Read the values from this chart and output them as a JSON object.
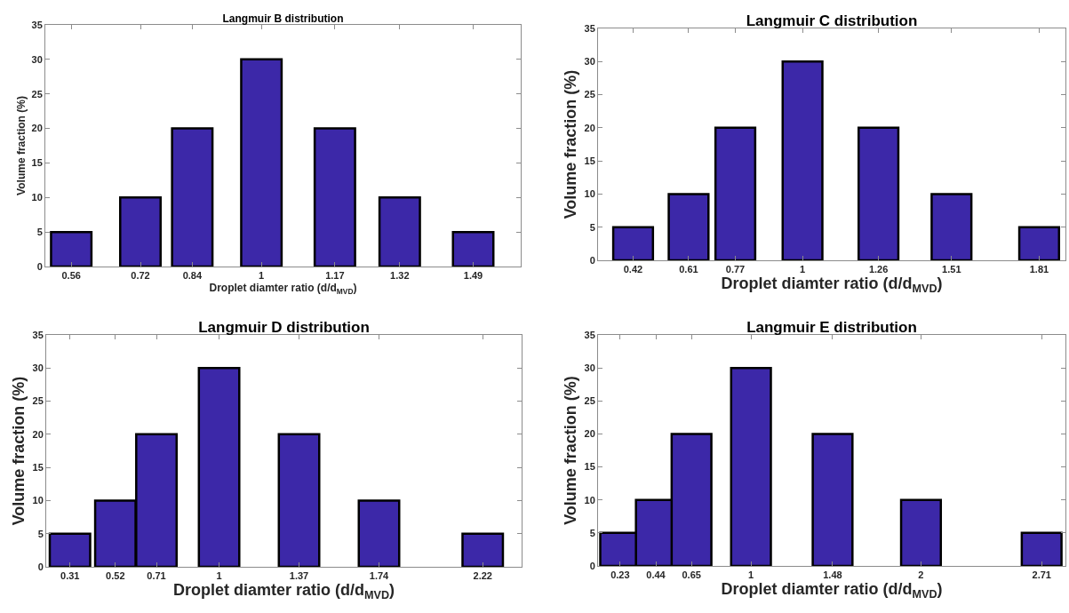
{
  "chart_data": [
    {
      "type": "bar",
      "title": "Langmuir B distribution",
      "xlabel": "Droplet diamter ratio (d/d$_{MVD}$)",
      "ylabel": "Volume fraction (%)",
      "x": [
        0.56,
        0.72,
        0.84,
        1,
        1.17,
        1.32,
        1.49
      ],
      "values": [
        5,
        10,
        20,
        30,
        20,
        10,
        5
      ],
      "color": "#3c28a8",
      "xlim": [
        0.5,
        1.6
      ],
      "xticks": [
        0.56,
        0.72,
        0.84,
        1,
        1.17,
        1.32,
        1.49
      ],
      "ylim": [
        0,
        35
      ],
      "yticks": [
        0,
        5,
        10,
        15,
        20,
        25,
        30,
        35
      ],
      "grid": false,
      "legend": false
    },
    {
      "type": "bar",
      "title": "Langmuir C distribution",
      "xlabel": "Droplet diamter ratio (d/d$_{MVD}$)",
      "ylabel": "Volume fraction (%)",
      "x": [
        0.42,
        0.61,
        0.77,
        1,
        1.26,
        1.51,
        1.81
      ],
      "values": [
        5,
        10,
        20,
        30,
        20,
        10,
        5
      ],
      "color": "#3c28a8",
      "xlim": [
        0.3,
        1.9
      ],
      "xticks": [
        0.42,
        0.61,
        0.77,
        1,
        1.26,
        1.51,
        1.81
      ],
      "ylim": [
        0,
        35
      ],
      "yticks": [
        0,
        5,
        10,
        15,
        20,
        25,
        30,
        35
      ],
      "grid": false,
      "legend": false
    },
    {
      "type": "bar",
      "title": "Langmuir D distribution",
      "xlabel": "Droplet diamter ratio (d/d$_{MVD}$)",
      "ylabel": "Volume fraction (%)",
      "x": [
        0.31,
        0.52,
        0.71,
        1,
        1.37,
        1.74,
        2.22
      ],
      "values": [
        5,
        10,
        20,
        30,
        20,
        10,
        5
      ],
      "color": "#3c28a8",
      "xlim": [
        0.2,
        2.4
      ],
      "xticks": [
        0.31,
        0.52,
        0.71,
        1,
        1.37,
        1.74,
        2.22
      ],
      "ylim": [
        0,
        35
      ],
      "yticks": [
        0,
        5,
        10,
        15,
        20,
        25,
        30,
        35
      ],
      "grid": false,
      "legend": false
    },
    {
      "type": "bar",
      "title": "Langmuir E distribution",
      "xlabel": "Droplet diamter ratio (d/d$_{MVD}$)",
      "ylabel": "Volume fraction (%)",
      "x": [
        0.23,
        0.44,
        0.65,
        1,
        1.48,
        2,
        2.71
      ],
      "values": [
        5,
        10,
        20,
        30,
        20,
        10,
        5
      ],
      "color": "#3c28a8",
      "xlim": [
        0.1,
        2.85
      ],
      "xticks": [
        0.23,
        0.44,
        0.65,
        1,
        1.48,
        2,
        2.71
      ],
      "ylim": [
        0,
        35
      ],
      "yticks": [
        0,
        5,
        10,
        15,
        20,
        25,
        30,
        35
      ],
      "grid": false,
      "legend": false
    }
  ]
}
